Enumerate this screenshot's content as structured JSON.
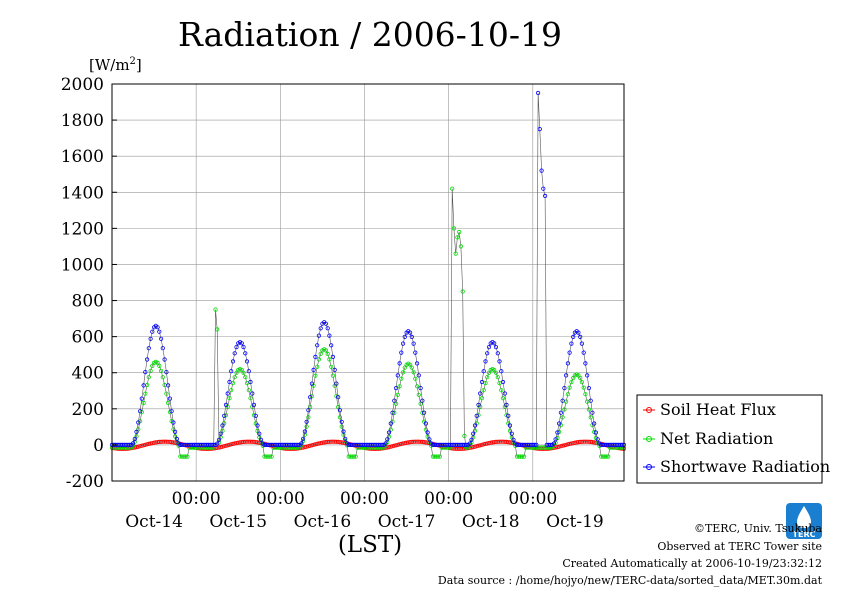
{
  "chart_data": {
    "type": "line",
    "title": "Radiation / 2006-10-19",
    "ylabel": "[W/m2]",
    "ylabel_parts": {
      "base": "[W/m",
      "sup": "2",
      "end": "]"
    },
    "xlabel": "(LST)",
    "ylim": [
      -200,
      2000
    ],
    "yticks": [
      -200,
      0,
      200,
      400,
      600,
      800,
      1000,
      1200,
      1400,
      1600,
      1800,
      2000
    ],
    "xlim_hours": [
      0,
      146
    ],
    "x_day_labels": [
      {
        "label": "Oct-14",
        "hour": 12
      },
      {
        "label": "Oct-15",
        "hour": 36
      },
      {
        "label": "Oct-16",
        "hour": 60
      },
      {
        "label": "Oct-17",
        "hour": 84
      },
      {
        "label": "Oct-18",
        "hour": 108
      },
      {
        "label": "Oct-19",
        "hour": 132
      }
    ],
    "x_time_labels": [
      {
        "label": "00:00",
        "hour": 24
      },
      {
        "label": "00:00",
        "hour": 48
      },
      {
        "label": "00:00",
        "hour": 72
      },
      {
        "label": "00:00",
        "hour": 96
      },
      {
        "label": "00:00",
        "hour": 120
      }
    ],
    "grid": true,
    "legend_position": "right",
    "series": [
      {
        "name": "Soil Heat Flux",
        "color": "#ff0000",
        "marker": "circle-open"
      },
      {
        "name": "Net Radiation",
        "color": "#00dd00",
        "marker": "circle-open"
      },
      {
        "name": "Shortwave Radiation",
        "color": "#0000ff",
        "marker": "circle-open"
      }
    ]
  },
  "credits": {
    "line1": "©TERC, Univ. Tsukuba",
    "line2": "Observed at TERC Tower site",
    "line3": "Created Automatically at 2006-10-19/23:32:12",
    "line4": "Data source : /home/hojyo/new/TERC-data/sorted_data/MET.30m.dat"
  },
  "logo": {
    "text": "TERC",
    "color": "#1a7fd0"
  }
}
